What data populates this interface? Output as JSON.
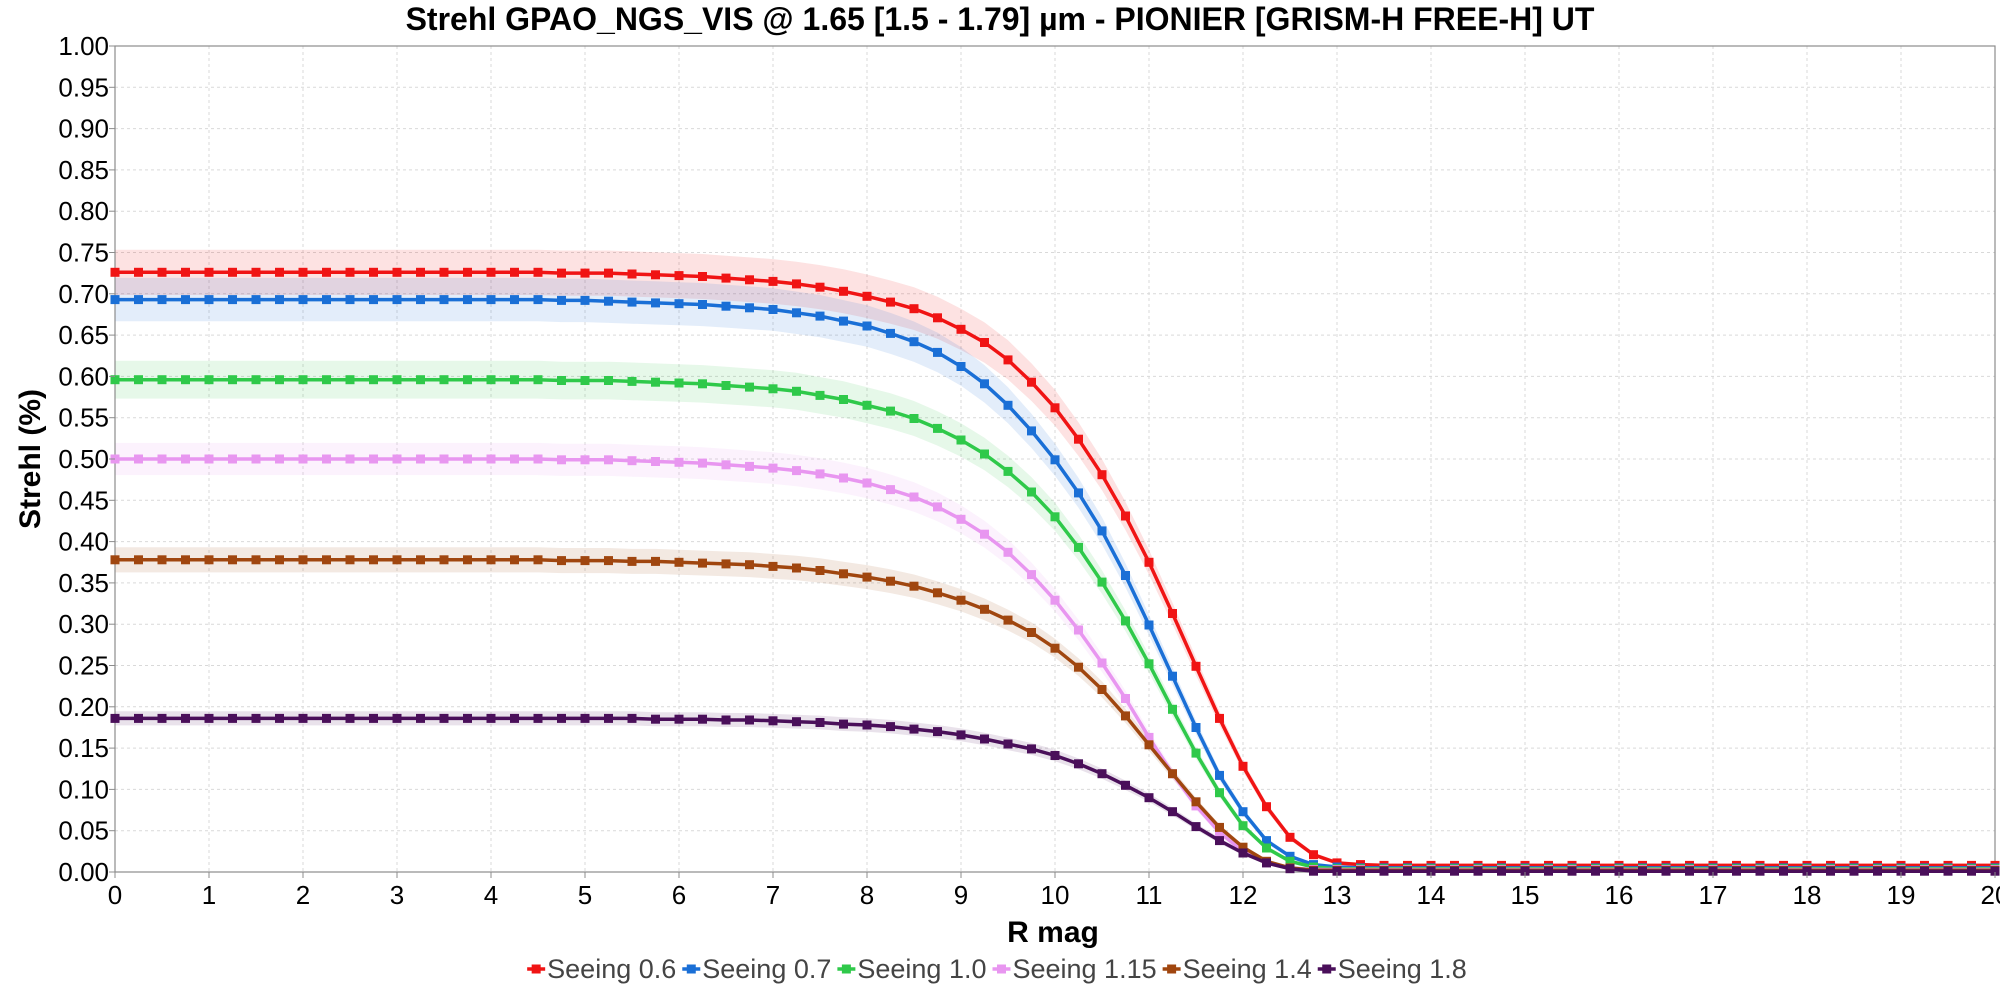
{
  "chart_data": {
    "type": "line",
    "title": "Strehl GPAO_NGS_VIS @ 1.65 [1.5 - 1.79] µm - PIONIER [GRISM-H FREE-H] UT",
    "xlabel": "R mag",
    "ylabel": "Strehl (%)",
    "xlim": [
      0,
      20
    ],
    "ylim": [
      0,
      1.0
    ],
    "x_ticks": [
      "0",
      "1",
      "2",
      "3",
      "4",
      "5",
      "6",
      "7",
      "8",
      "9",
      "10",
      "11",
      "12",
      "13",
      "14",
      "15",
      "16",
      "17",
      "18",
      "19",
      "20"
    ],
    "y_ticks": [
      "0.00",
      "0.05",
      "0.10",
      "0.15",
      "0.20",
      "0.25",
      "0.30",
      "0.35",
      "0.40",
      "0.45",
      "0.50",
      "0.55",
      "0.60",
      "0.65",
      "0.70",
      "0.75",
      "0.80",
      "0.85",
      "0.90",
      "0.95",
      "1.00"
    ],
    "grid": true,
    "legend_position": "bottom",
    "x": [
      0,
      0.25,
      0.5,
      0.75,
      1,
      1.25,
      1.5,
      1.75,
      2,
      2.25,
      2.5,
      2.75,
      3,
      3.25,
      3.5,
      3.75,
      4,
      4.25,
      4.5,
      4.75,
      5,
      5.25,
      5.5,
      5.75,
      6,
      6.25,
      6.5,
      6.75,
      7,
      7.25,
      7.5,
      7.75,
      8,
      8.25,
      8.5,
      8.75,
      9,
      9.25,
      9.5,
      9.75,
      10,
      10.25,
      10.5,
      10.75,
      11,
      11.25,
      11.5,
      11.75,
      12,
      12.25,
      12.5,
      12.75,
      13,
      13.25,
      13.5,
      13.75,
      14,
      14.25,
      14.5,
      14.75,
      15,
      15.25,
      15.5,
      15.75,
      16,
      16.25,
      16.5,
      16.75,
      17,
      17.25,
      17.5,
      17.75,
      18,
      18.25,
      18.5,
      18.75,
      19,
      19.25,
      19.5,
      19.75,
      20
    ],
    "series": [
      {
        "name": "Seeing 0.6",
        "color": "#f01414",
        "values": [
          0.726,
          0.726,
          0.726,
          0.726,
          0.726,
          0.726,
          0.726,
          0.726,
          0.726,
          0.726,
          0.726,
          0.726,
          0.726,
          0.726,
          0.726,
          0.726,
          0.726,
          0.726,
          0.726,
          0.725,
          0.725,
          0.725,
          0.724,
          0.723,
          0.722,
          0.721,
          0.719,
          0.717,
          0.715,
          0.712,
          0.708,
          0.703,
          0.697,
          0.69,
          0.682,
          0.671,
          0.657,
          0.641,
          0.62,
          0.593,
          0.562,
          0.524,
          0.481,
          0.431,
          0.375,
          0.313,
          0.249,
          0.186,
          0.128,
          0.079,
          0.042,
          0.021,
          0.011,
          0.009,
          0.008,
          0.008,
          0.008,
          0.008,
          0.008,
          0.008,
          0.008,
          0.008,
          0.008,
          0.008,
          0.008,
          0.008,
          0.008,
          0.008,
          0.008,
          0.008,
          0.008,
          0.008,
          0.008,
          0.008,
          0.008,
          0.008,
          0.008,
          0.008,
          0.008,
          0.008,
          0.008
        ]
      },
      {
        "name": "Seeing 0.7",
        "color": "#1a6fd6",
        "values": [
          0.693,
          0.693,
          0.693,
          0.693,
          0.693,
          0.693,
          0.693,
          0.693,
          0.693,
          0.693,
          0.693,
          0.693,
          0.693,
          0.693,
          0.693,
          0.693,
          0.693,
          0.693,
          0.693,
          0.692,
          0.692,
          0.691,
          0.69,
          0.689,
          0.688,
          0.687,
          0.685,
          0.683,
          0.681,
          0.677,
          0.673,
          0.667,
          0.661,
          0.652,
          0.642,
          0.629,
          0.612,
          0.591,
          0.565,
          0.534,
          0.499,
          0.459,
          0.413,
          0.359,
          0.299,
          0.237,
          0.175,
          0.117,
          0.073,
          0.038,
          0.019,
          0.009,
          0.006,
          0.005,
          0.005,
          0.005,
          0.005,
          0.005,
          0.005,
          0.005,
          0.005,
          0.005,
          0.005,
          0.005,
          0.005,
          0.005,
          0.005,
          0.005,
          0.005,
          0.005,
          0.005,
          0.005,
          0.005,
          0.005,
          0.005,
          0.005,
          0.005,
          0.005,
          0.005,
          0.005,
          0.005
        ]
      },
      {
        "name": "Seeing 1.0",
        "color": "#2fc94a",
        "values": [
          0.596,
          0.596,
          0.596,
          0.596,
          0.596,
          0.596,
          0.596,
          0.596,
          0.596,
          0.596,
          0.596,
          0.596,
          0.596,
          0.596,
          0.596,
          0.596,
          0.596,
          0.596,
          0.596,
          0.595,
          0.595,
          0.595,
          0.594,
          0.593,
          0.592,
          0.591,
          0.589,
          0.587,
          0.585,
          0.582,
          0.577,
          0.572,
          0.565,
          0.558,
          0.549,
          0.537,
          0.523,
          0.506,
          0.485,
          0.46,
          0.43,
          0.393,
          0.351,
          0.304,
          0.252,
          0.197,
          0.144,
          0.096,
          0.056,
          0.029,
          0.013,
          0.006,
          0.004,
          0.004,
          0.004,
          0.004,
          0.004,
          0.004,
          0.004,
          0.004,
          0.004,
          0.004,
          0.004,
          0.004,
          0.004,
          0.004,
          0.004,
          0.004,
          0.004,
          0.004,
          0.004,
          0.004,
          0.004,
          0.004,
          0.004,
          0.004,
          0.004,
          0.004,
          0.004,
          0.004,
          0.004
        ]
      },
      {
        "name": "Seeing 1.15",
        "color": "#e896f0",
        "values": [
          0.5,
          0.5,
          0.5,
          0.5,
          0.5,
          0.5,
          0.5,
          0.5,
          0.5,
          0.5,
          0.5,
          0.5,
          0.5,
          0.5,
          0.5,
          0.5,
          0.5,
          0.5,
          0.5,
          0.499,
          0.499,
          0.499,
          0.498,
          0.497,
          0.496,
          0.495,
          0.493,
          0.491,
          0.489,
          0.486,
          0.482,
          0.477,
          0.471,
          0.463,
          0.454,
          0.442,
          0.427,
          0.409,
          0.387,
          0.36,
          0.329,
          0.293,
          0.253,
          0.21,
          0.163,
          0.119,
          0.08,
          0.048,
          0.025,
          0.011,
          0.005,
          0.003,
          0.003,
          0.003,
          0.003,
          0.003,
          0.003,
          0.003,
          0.003,
          0.003,
          0.003,
          0.003,
          0.003,
          0.003,
          0.003,
          0.003,
          0.003,
          0.003,
          0.003,
          0.003,
          0.003,
          0.003,
          0.003,
          0.003,
          0.003,
          0.003,
          0.003,
          0.003,
          0.003,
          0.003,
          0.003
        ]
      },
      {
        "name": "Seeing 1.4",
        "color": "#a0460f",
        "values": [
          0.378,
          0.378,
          0.378,
          0.378,
          0.378,
          0.378,
          0.378,
          0.378,
          0.378,
          0.378,
          0.378,
          0.378,
          0.378,
          0.378,
          0.378,
          0.378,
          0.378,
          0.378,
          0.378,
          0.377,
          0.377,
          0.377,
          0.376,
          0.376,
          0.375,
          0.374,
          0.373,
          0.372,
          0.37,
          0.368,
          0.365,
          0.361,
          0.357,
          0.352,
          0.346,
          0.338,
          0.329,
          0.318,
          0.305,
          0.29,
          0.271,
          0.248,
          0.221,
          0.189,
          0.154,
          0.119,
          0.085,
          0.054,
          0.03,
          0.013,
          0.005,
          0.002,
          0.002,
          0.002,
          0.002,
          0.002,
          0.002,
          0.002,
          0.002,
          0.002,
          0.002,
          0.002,
          0.002,
          0.002,
          0.002,
          0.002,
          0.002,
          0.002,
          0.002,
          0.002,
          0.002,
          0.002,
          0.002,
          0.002,
          0.002,
          0.002,
          0.002,
          0.002,
          0.002,
          0.002,
          0.002
        ]
      },
      {
        "name": "Seeing 1.8",
        "color": "#4a0f5a",
        "values": [
          0.186,
          0.186,
          0.186,
          0.186,
          0.186,
          0.186,
          0.186,
          0.186,
          0.186,
          0.186,
          0.186,
          0.186,
          0.186,
          0.186,
          0.186,
          0.186,
          0.186,
          0.186,
          0.186,
          0.186,
          0.186,
          0.186,
          0.186,
          0.185,
          0.185,
          0.185,
          0.184,
          0.184,
          0.183,
          0.182,
          0.181,
          0.179,
          0.178,
          0.176,
          0.173,
          0.17,
          0.166,
          0.161,
          0.155,
          0.149,
          0.141,
          0.131,
          0.119,
          0.105,
          0.09,
          0.073,
          0.055,
          0.038,
          0.023,
          0.011,
          0.004,
          0.001,
          0.001,
          0.001,
          0.001,
          0.001,
          0.001,
          0.001,
          0.001,
          0.001,
          0.001,
          0.001,
          0.001,
          0.001,
          0.001,
          0.001,
          0.001,
          0.001,
          0.001,
          0.001,
          0.001,
          0.001,
          0.001,
          0.001,
          0.001,
          0.001,
          0.001,
          0.001,
          0.001,
          0.001,
          0.001
        ]
      }
    ]
  }
}
